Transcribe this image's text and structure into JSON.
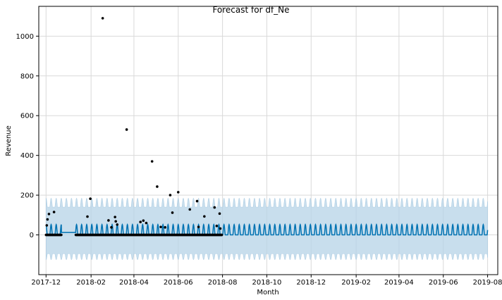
{
  "chart_data": {
    "type": "line",
    "title": "Forecast for df_Ne",
    "xlabel": "Month",
    "ylabel": "Revenue",
    "x_range": [
      "2017-11-21",
      "2019-08-15"
    ],
    "ylim": [
      -200,
      1150
    ],
    "grid": true,
    "colors": {
      "forecast_line": "#0072B2",
      "uncertainty_band": "#b5d3e7",
      "observed_points": "#000000",
      "grid": "#d9d9d9"
    },
    "x_ticks": [
      "2017-12",
      "2018-02",
      "2018-04",
      "2018-06",
      "2018-08",
      "2018-10",
      "2018-12",
      "2019-02",
      "2019-04",
      "2019-06",
      "2019-08"
    ],
    "y_ticks": [
      0,
      200,
      400,
      600,
      800,
      1000
    ],
    "forecast": {
      "start": "2017-12-01",
      "end": "2019-08-01",
      "gap": [
        "2017-12-22",
        "2018-01-11"
      ],
      "weekly_baseline": 0,
      "weekly_peak": 52,
      "band_inner": [
        -95,
        140
      ],
      "band_outer": [
        -125,
        185
      ]
    },
    "observed": [
      {
        "x": "2017-12-02",
        "y": 48
      },
      {
        "x": "2017-12-03",
        "y": 78
      },
      {
        "x": "2017-12-05",
        "y": 105
      },
      {
        "x": "2017-12-12",
        "y": 115
      },
      {
        "x": "2018-01-27",
        "y": 92
      },
      {
        "x": "2018-01-31",
        "y": 182
      },
      {
        "x": "2018-02-17",
        "y": 1090
      },
      {
        "x": "2018-02-25",
        "y": 73
      },
      {
        "x": "2018-03-01",
        "y": 38
      },
      {
        "x": "2018-03-06",
        "y": 90
      },
      {
        "x": "2018-03-07",
        "y": 68
      },
      {
        "x": "2018-03-09",
        "y": 52
      },
      {
        "x": "2018-03-22",
        "y": 530
      },
      {
        "x": "2018-04-10",
        "y": 65
      },
      {
        "x": "2018-04-14",
        "y": 72
      },
      {
        "x": "2018-04-18",
        "y": 60
      },
      {
        "x": "2018-04-26",
        "y": 370
      },
      {
        "x": "2018-05-03",
        "y": 243
      },
      {
        "x": "2018-05-08",
        "y": 40
      },
      {
        "x": "2018-05-14",
        "y": 38
      },
      {
        "x": "2018-05-21",
        "y": 200
      },
      {
        "x": "2018-05-24",
        "y": 112
      },
      {
        "x": "2018-06-01",
        "y": 215
      },
      {
        "x": "2018-06-17",
        "y": 128
      },
      {
        "x": "2018-06-27",
        "y": 170
      },
      {
        "x": "2018-06-29",
        "y": 40
      },
      {
        "x": "2018-07-07",
        "y": 93
      },
      {
        "x": "2018-07-21",
        "y": 138
      },
      {
        "x": "2018-07-24",
        "y": 45
      },
      {
        "x": "2018-07-28",
        "y": 107
      },
      {
        "x": "2018-07-29",
        "y": 32
      }
    ],
    "observed_zero_ranges": [
      [
        "2017-12-01",
        "2017-12-22"
      ],
      [
        "2018-01-11",
        "2018-07-31"
      ]
    ]
  }
}
